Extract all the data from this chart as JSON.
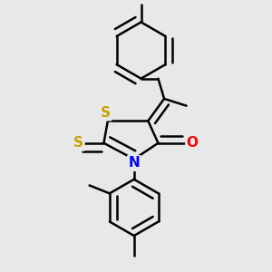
{
  "bg_color": "#e8e8e8",
  "line_color": "#000000",
  "bond_width": 1.8,
  "atom_colors": {
    "S": "#c8a000",
    "N": "#0000ff",
    "O": "#ff0000",
    "Cl": "#00aa00",
    "C": "#000000"
  },
  "font_size_atom": 11
}
